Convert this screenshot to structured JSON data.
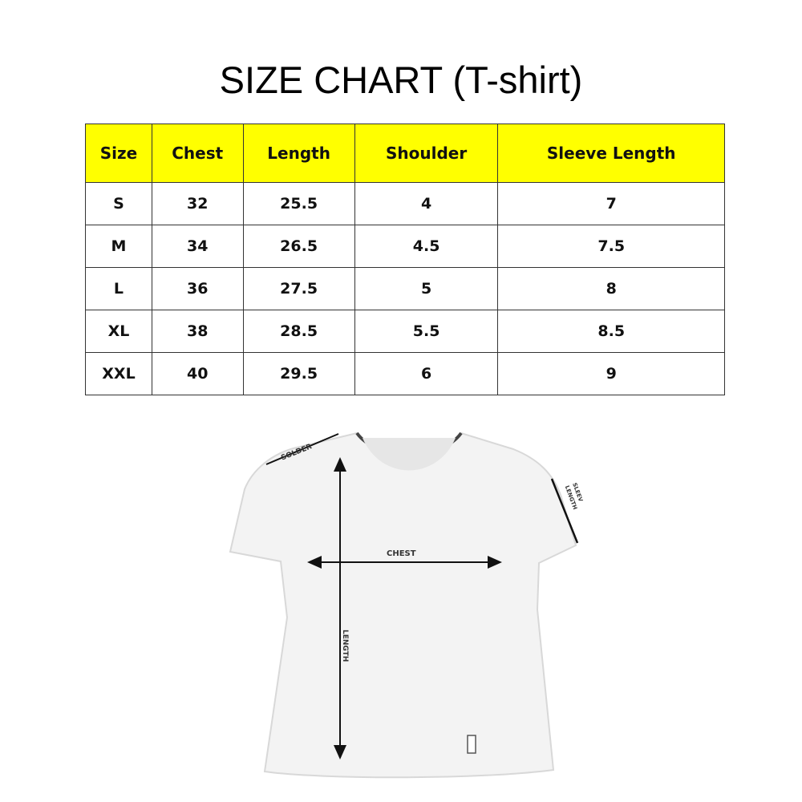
{
  "title": "SIZE CHART (T-shirt)",
  "table": {
    "header_color": "#ffff00",
    "columns": [
      "Size",
      "Chest",
      "Length",
      "Shoulder",
      "Sleeve Length"
    ],
    "rows": [
      [
        "S",
        "32",
        "25.5",
        "4",
        "7"
      ],
      [
        "M",
        "34",
        "26.5",
        "4.5",
        "7.5"
      ],
      [
        "L",
        "36",
        "27.5",
        "5",
        "8"
      ],
      [
        "XL",
        "38",
        "28.5",
        "5.5",
        "8.5"
      ],
      [
        "XXL",
        "40",
        "29.5",
        "6",
        "9"
      ]
    ]
  },
  "diagram": {
    "labels": {
      "shoulder": "SOLDER",
      "sleeve_line1": "SLEEV",
      "sleeve_line2": "LENGTH",
      "chest": "CHEST",
      "length": "LENGTH"
    }
  }
}
